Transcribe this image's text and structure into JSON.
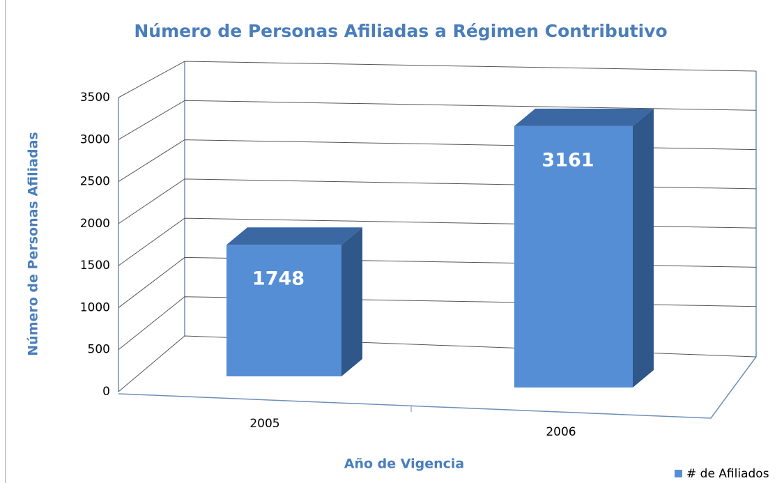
{
  "chart_data": {
    "type": "bar",
    "title": "Número de Personas Afiliadas a Régimen Contributivo",
    "xlabel": "Año de Vigencia",
    "ylabel": "Número de Personas Afiliadas",
    "categories": [
      "2005",
      "2006"
    ],
    "series": [
      {
        "name": "# de Afiliados",
        "color": "#558ed5",
        "values": [
          1748,
          3161
        ]
      }
    ],
    "ylim": [
      0,
      3500
    ],
    "yticks": [
      0,
      500,
      1000,
      1500,
      2000,
      2500,
      3000,
      3500
    ],
    "grid": true,
    "legend": "bottom-right"
  }
}
